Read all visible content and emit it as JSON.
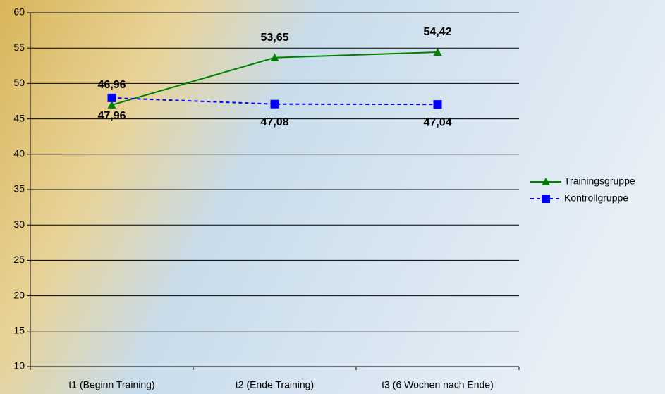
{
  "chart_data": {
    "type": "line",
    "categories": [
      "t1 (Beginn Training)",
      "t2 (Ende Training)",
      "t3 (6 Wochen nach Ende)"
    ],
    "series": [
      {
        "name": "Trainingsgruppe",
        "color": "#008000",
        "marker": "triangle",
        "dashed": false,
        "values": [
          46.96,
          53.65,
          54.42
        ],
        "value_labels": [
          "46,96",
          "53,65",
          "54,42"
        ]
      },
      {
        "name": "Kontrollgruppe",
        "color": "#0000ff",
        "marker": "square",
        "dashed": true,
        "values": [
          47.96,
          47.08,
          47.04
        ],
        "value_labels": [
          "47,96",
          "47,08",
          "47,04"
        ]
      }
    ],
    "ylim": [
      10,
      60
    ],
    "yticks": [
      10,
      15,
      20,
      25,
      30,
      35,
      40,
      45,
      50,
      55,
      60
    ],
    "grid": true,
    "legend": "right"
  }
}
